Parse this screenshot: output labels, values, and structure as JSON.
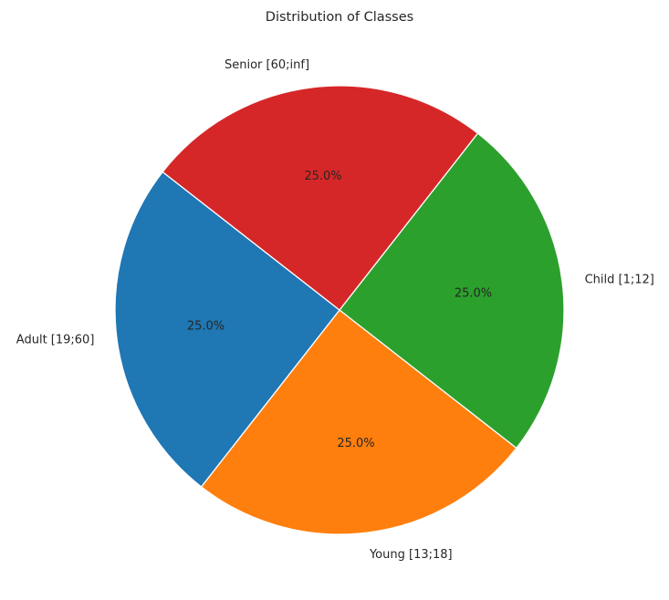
{
  "chart_data": {
    "type": "pie",
    "title": "Distribution of Classes",
    "labels": [
      "Child [1;12]",
      "Young [13;18]",
      "Adult [19;60]",
      "Senior [60;inf]"
    ],
    "values": [
      25.0,
      25.0,
      25.0,
      25.0
    ],
    "percent_labels": [
      "25.0%",
      "25.0%",
      "25.0%",
      "25.0%"
    ],
    "colors": [
      "#2ca02c",
      "#ff7f0e",
      "#1f77b4",
      "#d62728"
    ],
    "start_angle_deg": 52,
    "direction": "clockwise"
  }
}
